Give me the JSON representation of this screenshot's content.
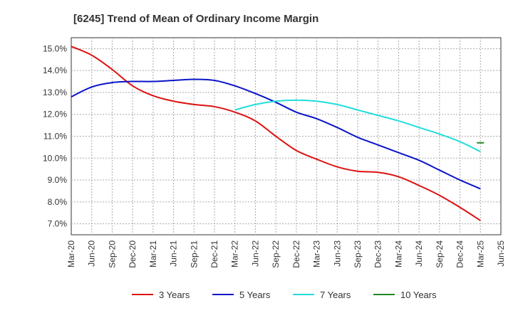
{
  "chart_data": {
    "type": "line",
    "title": "[6245]  Trend of Mean of Ordinary Income Margin",
    "xlabel": "",
    "ylabel": "",
    "x_ticks": [
      "Mar-20",
      "Jun-20",
      "Sep-20",
      "Dec-20",
      "Mar-21",
      "Jun-21",
      "Sep-21",
      "Dec-21",
      "Mar-22",
      "Jun-22",
      "Sep-22",
      "Dec-22",
      "Mar-23",
      "Jun-23",
      "Sep-23",
      "Dec-23",
      "Mar-24",
      "Jun-24",
      "Sep-24",
      "Dec-24",
      "Mar-25",
      "Jun-25"
    ],
    "y_ticks": [
      "15.0%",
      "14.0%",
      "13.0%",
      "12.0%",
      "11.0%",
      "10.0%",
      "9.0%",
      "8.0%",
      "7.0%"
    ],
    "ylim": [
      6.5,
      15.5
    ],
    "y_unit": "%",
    "grid": true,
    "legend_position": "bottom",
    "series": [
      {
        "name": "3 Years",
        "color": "#dd1111",
        "x": [
          "Mar-20",
          "Jun-20",
          "Sep-20",
          "Dec-20",
          "Mar-21",
          "Jun-21",
          "Sep-21",
          "Dec-21",
          "Mar-22",
          "Jun-22",
          "Sep-22",
          "Dec-22",
          "Mar-23",
          "Jun-23",
          "Sep-23",
          "Dec-23",
          "Mar-24",
          "Jun-24",
          "Sep-24",
          "Dec-24",
          "Mar-25"
        ],
        "values": [
          15.1,
          14.7,
          14.05,
          13.3,
          12.85,
          12.6,
          12.45,
          12.35,
          12.1,
          11.7,
          11.0,
          10.35,
          9.95,
          9.6,
          9.4,
          9.35,
          9.15,
          8.75,
          8.3,
          7.75,
          7.15
        ]
      },
      {
        "name": "5 Years",
        "color": "#0a14c8",
        "x": [
          "Mar-20",
          "Jun-20",
          "Sep-20",
          "Dec-20",
          "Mar-21",
          "Jun-21",
          "Sep-21",
          "Dec-21",
          "Mar-22",
          "Jun-22",
          "Sep-22",
          "Dec-22",
          "Mar-23",
          "Jun-23",
          "Sep-23",
          "Dec-23",
          "Mar-24",
          "Jun-24",
          "Sep-24",
          "Dec-24",
          "Mar-25"
        ],
        "values": [
          12.8,
          13.25,
          13.45,
          13.5,
          13.5,
          13.55,
          13.6,
          13.55,
          13.3,
          12.95,
          12.55,
          12.1,
          11.8,
          11.4,
          10.95,
          10.6,
          10.25,
          9.9,
          9.45,
          9.0,
          8.6
        ]
      },
      {
        "name": "7 Years",
        "color": "#22dddd",
        "x": [
          "Mar-22",
          "Jun-22",
          "Sep-22",
          "Dec-22",
          "Mar-23",
          "Jun-23",
          "Sep-23",
          "Dec-23",
          "Mar-24",
          "Jun-24",
          "Sep-24",
          "Dec-24",
          "Mar-25"
        ],
        "values": [
          12.2,
          12.45,
          12.6,
          12.65,
          12.6,
          12.45,
          12.2,
          11.95,
          11.7,
          11.4,
          11.1,
          10.75,
          10.3
        ]
      },
      {
        "name": "10 Years",
        "color": "#228822",
        "x": [
          "Mar-25"
        ],
        "values": [
          10.7
        ]
      }
    ]
  }
}
